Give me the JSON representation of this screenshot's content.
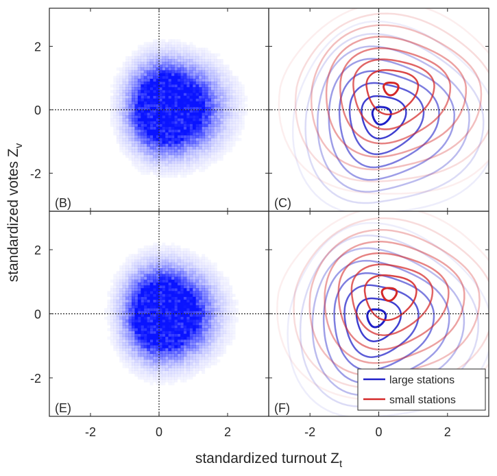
{
  "figure": {
    "ylabel_main": "standardized votes Z",
    "ylabel_sub": "v",
    "xlabel_main": "standardized turnout Z",
    "xlabel_sub": "t"
  },
  "colors": {
    "large": "#1f1fc8",
    "small": "#d42828",
    "density": "#0a14ff",
    "axis": "#262626"
  },
  "chart_data": [
    {
      "panel": "(B)",
      "type": "heatmap",
      "xlim": [
        -3.2,
        3.2
      ],
      "ylim": [
        -3.2,
        3.2
      ],
      "xticks": [
        -2,
        0,
        2
      ],
      "yticks": [
        -2,
        0,
        2
      ],
      "reference_lines": {
        "x": 0,
        "y": 0,
        "style": "dotted"
      },
      "density": {
        "center": [
          0.15,
          0.05
        ],
        "sigma_x": 0.55,
        "sigma_y": 0.75,
        "skew_right": 0.5
      }
    },
    {
      "panel": "(C)",
      "type": "contour",
      "xlim": [
        -3.2,
        3.2
      ],
      "ylim": [
        -3.2,
        3.2
      ],
      "reference_lines": {
        "x": 0,
        "y": 0,
        "style": "dotted"
      },
      "series": [
        {
          "name": "large stations",
          "center": [
            0.05,
            -0.15
          ],
          "levels": [
            0.25,
            0.6,
            1.0,
            1.35,
            1.7,
            2.05,
            2.4,
            2.75
          ]
        },
        {
          "name": "small stations",
          "center": [
            0.35,
            0.7
          ],
          "levels": [
            0.2,
            0.7,
            1.1,
            1.5,
            1.9,
            2.3,
            2.7,
            3.1
          ]
        }
      ]
    },
    {
      "panel": "(E)",
      "type": "heatmap",
      "xlim": [
        -3.2,
        3.2
      ],
      "ylim": [
        -3.2,
        3.2
      ],
      "xticks": [
        -2,
        0,
        2
      ],
      "yticks": [
        -2,
        0,
        2
      ],
      "reference_lines": {
        "x": 0,
        "y": 0,
        "style": "dotted"
      },
      "density": {
        "center": [
          0.05,
          0.0
        ],
        "sigma_x": 0.55,
        "sigma_y": 0.75,
        "skew_right": 0.4
      }
    },
    {
      "panel": "(F)",
      "type": "contour",
      "xlim": [
        -3.2,
        3.2
      ],
      "ylim": [
        -3.2,
        3.2
      ],
      "xticks": [
        -2,
        0,
        2
      ],
      "reference_lines": {
        "x": 0,
        "y": 0,
        "style": "dotted"
      },
      "legend_position": "bottom-right",
      "series": [
        {
          "name": "large stations",
          "center": [
            -0.1,
            -0.1
          ],
          "levels": [
            0.25,
            0.6,
            1.0,
            1.35,
            1.7,
            2.05,
            2.4,
            2.75
          ]
        },
        {
          "name": "small stations",
          "center": [
            0.3,
            0.65
          ],
          "levels": [
            0.2,
            0.7,
            1.1,
            1.5,
            1.9,
            2.3,
            2.7,
            3.1
          ]
        }
      ]
    }
  ]
}
